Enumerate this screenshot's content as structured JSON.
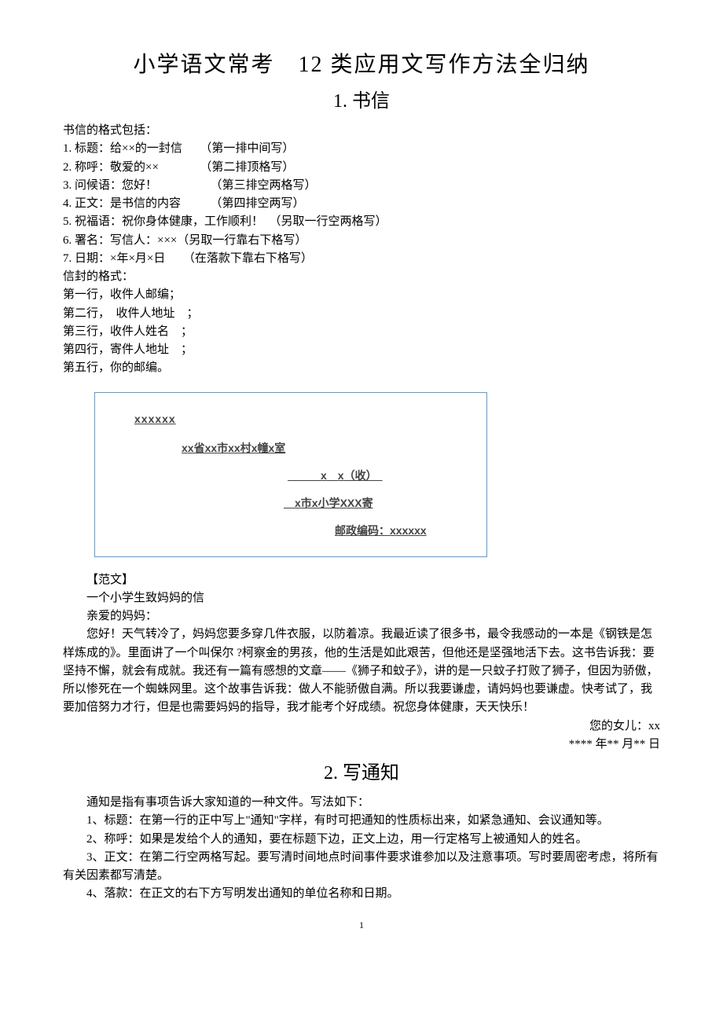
{
  "main_title": "小学语文常考　12 类应用文写作方法全归纳",
  "section1": {
    "title": "1. 书信",
    "intro": "书信的格式包括：",
    "items": [
      "1. 标题：给××的一封信　　（第一排中间写）",
      "2. 称呼：敬爱的××　　　　（第二排顶格写）",
      "3. 问候语：您好！　　　　　（第三排空两格写）",
      "4. 正文：是书信的内容　　　（第四排空两写）",
      "5. 祝福语：祝你身体健康，工作顺利！　（另取一行空两格写）",
      "6. 署名：写信人：×××（另取一行靠右下格写）",
      "7. 日期：×年×月×日　　（在落款下靠右下格写）"
    ],
    "envelope_intro": "信封的格式：",
    "envelope_lines": [
      "第一行，收件人邮编；",
      "第二行，　收件人地址　；",
      "第三行，收件人姓名　；",
      "第四行，寄件人地址　；",
      "第五行，你的邮编。"
    ],
    "envelope_box": {
      "postcode": "xxxxxx",
      "address": "xx省xx市xx村x幢x室",
      "recipient": "　　　x　x（收）　",
      "sender": "　x市x小学XXX寄",
      "send_postcode": "邮政编码：xxxxxx"
    },
    "example_label": "【范文】",
    "example_title": "一个小学生致妈妈的信",
    "example_salutation": "亲爱的妈妈：",
    "example_body": "您好！天气转冷了，妈妈您要多穿几件衣服，以防着凉。我最近读了很多书，最令我感动的一本是《钢铁是怎样炼成的》。里面讲了一个叫保尔 ?柯察金的男孩，他的生活是如此艰苦，但他还是坚强地活下去。这书告诉我：要坚持不懈，就会有成就。我还有一篇有感想的文章——《狮子和蚊子》，讲的是一只蚊子打败了狮子，但因为骄傲，所以惨死在一个蜘蛛网里。这个故事告诉我：做人不能骄傲自满。所以我要谦虚，请妈妈也要谦虚。快考试了，我要加倍努力才行，但是也需要妈妈的指导，我才能考个好成绩。祝您身体健康，天天快乐！",
    "example_sign": "您的女儿：xx",
    "example_date": "**** 年** 月** 日"
  },
  "section2": {
    "title": "2. 写通知",
    "intro": "通知是指有事项告诉大家知道的一种文件。写法如下：",
    "items": [
      "1、标题：在第一行的正中写上\"通知\"字样，有时可把通知的性质标出来，如紧急通知、会议通知等。",
      "2、称呼：如果是发给个人的通知，要在标题下边，正文上边，用一行定格写上被通知人的姓名。",
      "3、正文：在第二行空两格写起。要写清时间地点时间事件要求谁参加以及注意事项。写时要周密考虑，将所有有关因素都写清楚。",
      "4、落款：在正文的右下方写明发出通知的单位名称和日期。"
    ]
  },
  "page_number": "1",
  "colors": {
    "text": "#000000",
    "background": "#ffffff",
    "box_border": "#5b9bd5"
  }
}
